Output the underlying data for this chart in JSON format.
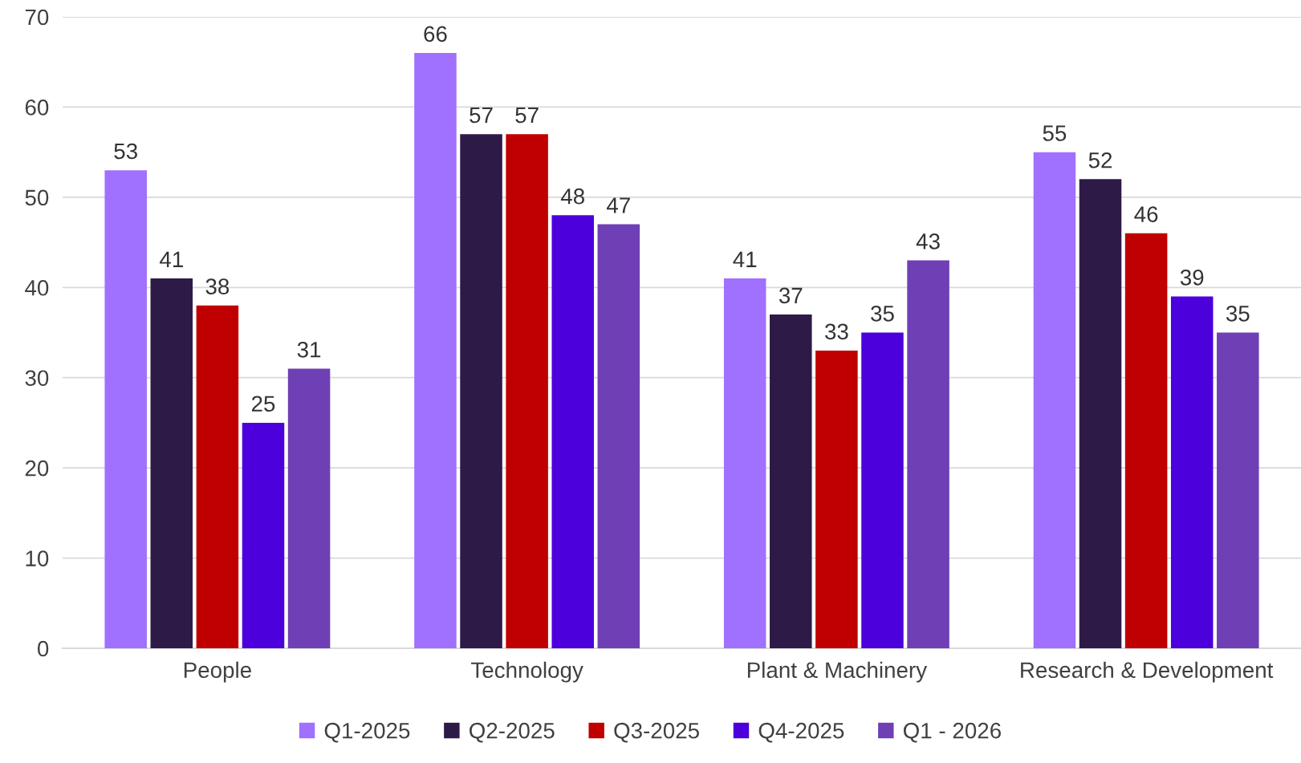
{
  "chart_data": {
    "type": "bar",
    "categories": [
      "People",
      "Technology",
      "Plant & Machinery",
      "Research & Development"
    ],
    "series": [
      {
        "name": "Q1-2025",
        "color": "#a070ff",
        "values": [
          53,
          66,
          41,
          55
        ]
      },
      {
        "name": "Q2-2025",
        "color": "#2e1a47",
        "values": [
          41,
          57,
          37,
          52
        ]
      },
      {
        "name": "Q3-2025",
        "color": "#c00000",
        "values": [
          38,
          57,
          33,
          46
        ]
      },
      {
        "name": "Q4-2025",
        "color": "#4b00dc",
        "values": [
          25,
          48,
          35,
          39
        ]
      },
      {
        "name": "Q1 - 2026",
        "color": "#6f3fb5",
        "values": [
          31,
          47,
          43,
          35
        ]
      }
    ],
    "ylim": [
      0,
      70
    ],
    "yticks": [
      0,
      10,
      20,
      30,
      40,
      50,
      60,
      70
    ],
    "grid": "y",
    "legend": "bottom",
    "data_labels": true
  }
}
